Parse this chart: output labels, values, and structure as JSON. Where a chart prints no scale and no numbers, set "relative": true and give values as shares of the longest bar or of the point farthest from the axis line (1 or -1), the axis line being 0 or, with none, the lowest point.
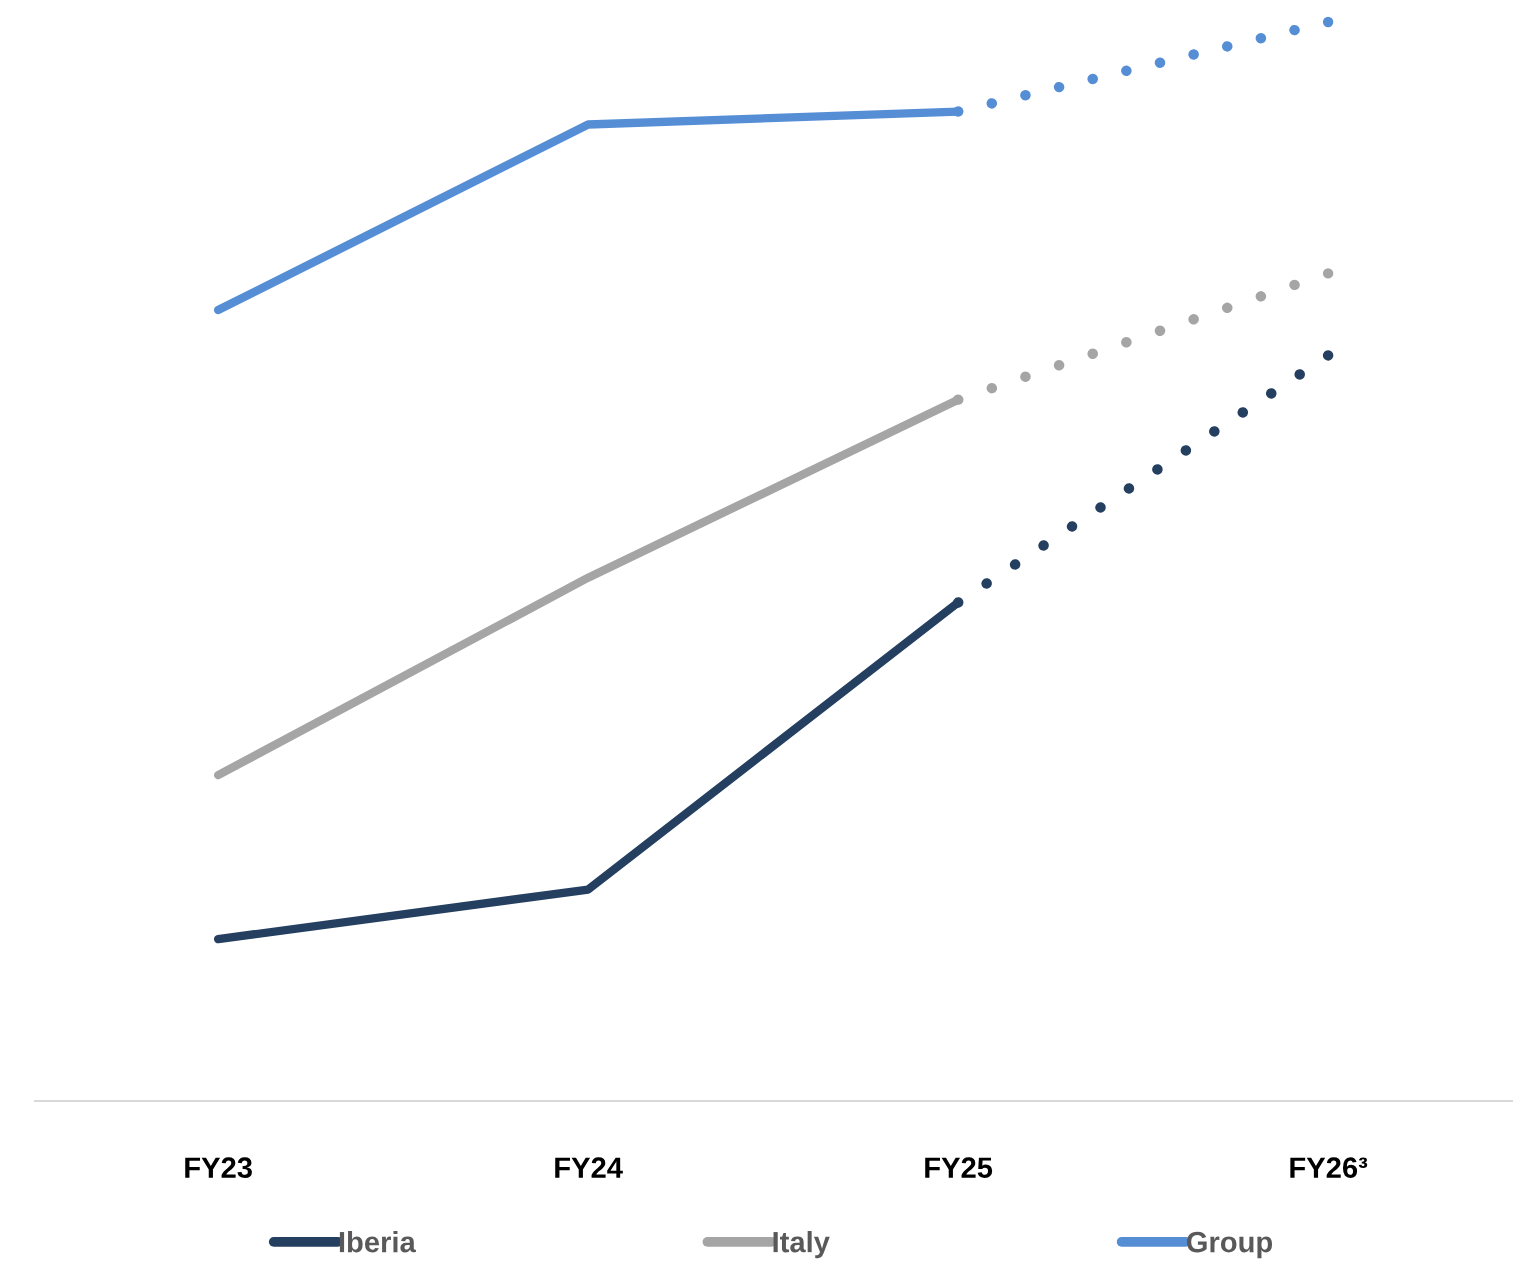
{
  "chart_data": {
    "type": "line",
    "relative": true,
    "categories": [
      "FY23",
      "FY24",
      "FY25",
      "FY26³"
    ],
    "legend": "bottom",
    "grid": false,
    "marker": "none",
    "series": [
      {
        "name": "Iberia",
        "color": "#243f60",
        "line_style": "solid",
        "values": [
          0.15,
          0.196,
          0.462,
          null
        ]
      },
      {
        "color": "#243f60",
        "line_style": "dotted",
        "values": [
          null,
          null,
          0.462,
          0.691
        ]
      },
      {
        "name": "Italy",
        "color": "#a5a5a5",
        "line_style": "solid",
        "values": [
          0.302,
          0.485,
          0.65,
          null
        ]
      },
      {
        "color": "#a5a5a5",
        "line_style": "dotted",
        "values": [
          null,
          null,
          0.65,
          0.767
        ]
      },
      {
        "name": "Group",
        "color": "#558ed5",
        "line_style": "solid",
        "values": [
          0.733,
          0.905,
          0.917,
          null
        ]
      },
      {
        "color": "#558ed5",
        "line_style": "dotted",
        "values": [
          null,
          null,
          0.917,
          1.0
        ]
      }
    ]
  }
}
